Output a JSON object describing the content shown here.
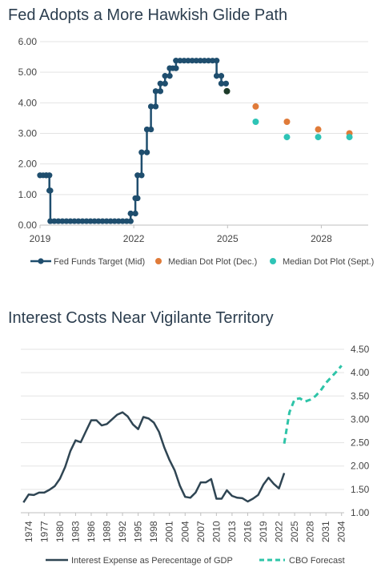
{
  "chart_data": [
    {
      "type": "line",
      "title": "Fed Adopts a More Hawkish Glide Path",
      "ylim": [
        0,
        6
      ],
      "yticks": [
        "0.00",
        "1.00",
        "2.00",
        "3.00",
        "4.00",
        "5.00",
        "6.00"
      ],
      "xlim": [
        2019,
        2029.5
      ],
      "xticks": [
        "2019",
        "2022",
        "2025",
        "2028"
      ],
      "grid": "horizontal",
      "legend_position": "bottom",
      "colors": {
        "fed": "#1f4e6e",
        "dec": "#e07b39",
        "sept": "#2ec4b6",
        "last_point": "#1d3b2a"
      },
      "series": [
        {
          "name": "Fed Funds Target (Mid)",
          "kind": "step-line",
          "points": [
            [
              2019.0,
              1.63
            ],
            [
              2019.2,
              1.63
            ],
            [
              2019.3,
              1.63
            ],
            [
              2019.3,
              1.13
            ],
            [
              2019.33,
              1.13
            ],
            [
              2019.33,
              0.13
            ],
            [
              2021.9,
              0.13
            ],
            [
              2021.9,
              0.38
            ],
            [
              2022.05,
              0.38
            ],
            [
              2022.05,
              0.88
            ],
            [
              2022.12,
              0.88
            ],
            [
              2022.12,
              1.63
            ],
            [
              2022.25,
              1.63
            ],
            [
              2022.25,
              2.38
            ],
            [
              2022.42,
              2.38
            ],
            [
              2022.42,
              3.13
            ],
            [
              2022.55,
              3.13
            ],
            [
              2022.55,
              3.88
            ],
            [
              2022.7,
              3.88
            ],
            [
              2022.7,
              4.38
            ],
            [
              2022.85,
              4.38
            ],
            [
              2022.85,
              4.63
            ],
            [
              2023.0,
              4.63
            ],
            [
              2023.0,
              4.88
            ],
            [
              2023.15,
              4.88
            ],
            [
              2023.15,
              5.13
            ],
            [
              2023.35,
              5.13
            ],
            [
              2023.35,
              5.38
            ],
            [
              2024.65,
              5.38
            ],
            [
              2024.65,
              4.88
            ],
            [
              2024.8,
              4.88
            ],
            [
              2024.8,
              4.63
            ],
            [
              2024.95,
              4.63
            ]
          ],
          "last_point": [
            2024.98,
            4.38
          ]
        },
        {
          "name": "Median Dot Plot (Dec.)",
          "kind": "scatter",
          "points": [
            [
              2025.9,
              3.88
            ],
            [
              2026.9,
              3.38
            ],
            [
              2027.9,
              3.13
            ],
            [
              2028.9,
              3.0
            ]
          ]
        },
        {
          "name": "Median Dot Plot (Sept.)",
          "kind": "scatter",
          "points": [
            [
              2025.9,
              3.38
            ],
            [
              2026.9,
              2.88
            ],
            [
              2027.9,
              2.88
            ],
            [
              2028.9,
              2.88
            ]
          ]
        }
      ]
    },
    {
      "type": "line",
      "title": "Interest Costs Near Vigilante Territory",
      "ylim": [
        1.0,
        4.5
      ],
      "yticks": [
        "1.00",
        "1.50",
        "2.00",
        "2.50",
        "3.00",
        "3.50",
        "4.00",
        "4.50"
      ],
      "y_axis_side": "right",
      "xlim": [
        1972.5,
        2034.5
      ],
      "xticks": [
        "1974",
        "1977",
        "1980",
        "1983",
        "1986",
        "1989",
        "1992",
        "1995",
        "1998",
        "2001",
        "2004",
        "2007",
        "2010",
        "2013",
        "2016",
        "2019",
        "2022",
        "2025",
        "2028",
        "2031",
        "2034"
      ],
      "grid": "horizontal",
      "legend_position": "bottom",
      "colors": {
        "actual": "#2f4553",
        "forecast": "#2ec4a8"
      },
      "series": [
        {
          "name": "Interest Expense as Perecentage of GDP",
          "style": "solid",
          "x": [
            1973,
            1974,
            1975,
            1976,
            1977,
            1978,
            1979,
            1980,
            1981,
            1982,
            1983,
            1984,
            1985,
            1986,
            1987,
            1988,
            1989,
            1990,
            1991,
            1992,
            1993,
            1994,
            1995,
            1996,
            1997,
            1998,
            1999,
            2000,
            2001,
            2002,
            2003,
            2004,
            2005,
            2006,
            2007,
            2008,
            2009,
            2010,
            2011,
            2012,
            2013,
            2014,
            2015,
            2016,
            2017,
            2018,
            2019,
            2020,
            2021,
            2022,
            2023
          ],
          "values": [
            1.22,
            1.39,
            1.38,
            1.43,
            1.43,
            1.49,
            1.57,
            1.73,
            1.98,
            2.32,
            2.55,
            2.51,
            2.75,
            2.98,
            2.98,
            2.87,
            2.9,
            3.0,
            3.1,
            3.15,
            3.06,
            2.89,
            2.79,
            3.05,
            3.02,
            2.93,
            2.73,
            2.4,
            2.13,
            1.91,
            1.58,
            1.34,
            1.32,
            1.43,
            1.65,
            1.65,
            1.72,
            1.3,
            1.3,
            1.48,
            1.36,
            1.32,
            1.31,
            1.24,
            1.3,
            1.38,
            1.6,
            1.75,
            1.62,
            1.52,
            1.85
          ]
        },
        {
          "name": "CBO Forecast",
          "style": "dashed",
          "x": [
            2023,
            2024,
            2025,
            2026,
            2027,
            2028,
            2029,
            2030,
            2031,
            2032,
            2033,
            2034
          ],
          "values": [
            2.48,
            3.15,
            3.43,
            3.45,
            3.38,
            3.42,
            3.5,
            3.62,
            3.78,
            3.9,
            4.02,
            4.15
          ]
        }
      ]
    }
  ]
}
